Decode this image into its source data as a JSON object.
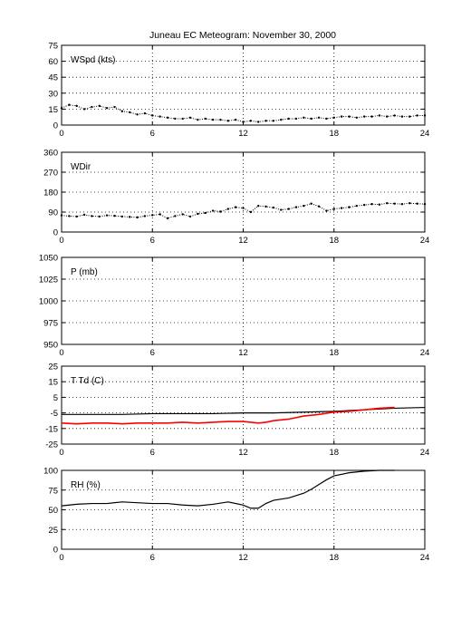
{
  "title": "Juneau EC Meteogram:  November 30, 2000",
  "colors": {
    "axis": "#000000",
    "line_black": "#000000",
    "line_red": "#ff0000",
    "grid": "#000000"
  },
  "chart_data": [
    {
      "type": "scatter",
      "label": "WSpd (kts)",
      "xlim": [
        0,
        24
      ],
      "ylim": [
        0,
        75
      ],
      "xticks": [
        0,
        6,
        12,
        18,
        24
      ],
      "yticks": [
        0,
        15,
        30,
        45,
        60,
        75
      ],
      "grid": true,
      "series": [
        {
          "color": "#000000",
          "x": [
            0,
            0.5,
            1,
            1.5,
            2,
            2.5,
            3,
            3.5,
            4,
            4.5,
            5,
            5.5,
            6,
            6.5,
            7,
            7.5,
            8,
            8.5,
            9,
            9.5,
            10,
            10.5,
            11,
            11.5,
            12,
            12.5,
            13,
            13.5,
            14,
            14.5,
            15,
            15.5,
            16,
            16.5,
            17,
            17.5,
            18,
            18.5,
            19,
            19.5,
            20,
            20.5,
            21,
            21.5,
            22,
            22.5,
            23,
            23.5,
            24
          ],
          "values": [
            16,
            19,
            18,
            15,
            17,
            18,
            16,
            17,
            13,
            12,
            10,
            11,
            9,
            8,
            7,
            6,
            6,
            7,
            5,
            6,
            5,
            5,
            4,
            5,
            3,
            4,
            3,
            4,
            4,
            5,
            6,
            6,
            7,
            6,
            7,
            6,
            7,
            8,
            8,
            7,
            8,
            8,
            9,
            8,
            9,
            8,
            8,
            9,
            9
          ]
        }
      ]
    },
    {
      "type": "scatter",
      "label": "WDir",
      "xlim": [
        0,
        24
      ],
      "ylim": [
        0,
        360
      ],
      "xticks": [
        0,
        6,
        12,
        18,
        24
      ],
      "yticks": [
        0,
        90,
        180,
        270,
        360
      ],
      "grid": true,
      "series": [
        {
          "color": "#000000",
          "x": [
            0,
            0.5,
            1,
            1.5,
            2,
            2.5,
            3,
            3.5,
            4,
            4.5,
            5,
            5.5,
            6,
            6.5,
            7,
            7.5,
            8,
            8.5,
            9,
            9.5,
            10,
            10.5,
            11,
            11.5,
            12,
            12.5,
            13,
            13.5,
            14,
            14.5,
            15,
            15.5,
            16,
            16.5,
            17,
            17.5,
            18,
            18.5,
            19,
            19.5,
            20,
            20.5,
            21,
            21.5,
            22,
            22.5,
            23,
            23.5,
            24
          ],
          "values": [
            75,
            72,
            70,
            78,
            72,
            70,
            75,
            73,
            70,
            68,
            66,
            72,
            76,
            80,
            62,
            72,
            80,
            70,
            82,
            86,
            96,
            92,
            104,
            112,
            108,
            90,
            118,
            115,
            110,
            100,
            104,
            112,
            118,
            128,
            116,
            96,
            104,
            108,
            112,
            118,
            122,
            126,
            124,
            130,
            128,
            126,
            130,
            128,
            126
          ]
        }
      ]
    },
    {
      "type": "line",
      "label": "P (mb)",
      "xlim": [
        0,
        24
      ],
      "ylim": [
        950,
        1050
      ],
      "xticks": [
        0,
        6,
        12,
        18,
        24
      ],
      "yticks": [
        950,
        975,
        1000,
        1025,
        1050
      ],
      "grid": true,
      "series": []
    },
    {
      "type": "line",
      "label": "T Td (C)",
      "xlim": [
        0,
        24
      ],
      "ylim": [
        -25,
        25
      ],
      "xticks": [
        0,
        6,
        12,
        18,
        24
      ],
      "yticks": [
        -25,
        -15,
        -5,
        5,
        15,
        25
      ],
      "grid": true,
      "series": [
        {
          "color": "#000000",
          "x": [
            0,
            2,
            4,
            6,
            8,
            10,
            12,
            14,
            16,
            18,
            20,
            22,
            24
          ],
          "values": [
            -6,
            -6,
            -6,
            -5.5,
            -5.5,
            -5.5,
            -5,
            -5,
            -4.5,
            -4,
            -3,
            -2,
            -1.5
          ]
        },
        {
          "color": "#ff0000",
          "x": [
            0,
            1,
            2,
            3,
            4,
            5,
            6,
            7,
            8,
            9,
            10,
            11,
            12,
            12.5,
            13,
            13.5,
            14,
            15,
            16,
            17,
            18,
            19,
            20,
            21,
            22,
            23,
            24
          ],
          "values": [
            -11.5,
            -12,
            -11.5,
            -11.5,
            -12,
            -11.5,
            -11.5,
            -11.5,
            -11,
            -11.5,
            -11,
            -10.5,
            -10.5,
            -11,
            -11.5,
            -11,
            -10,
            -9,
            -7,
            -6,
            -4.5,
            -4,
            -3,
            -2,
            -1.5,
            null,
            null
          ]
        }
      ]
    },
    {
      "type": "line",
      "label": "RH (%)",
      "xlim": [
        0,
        24
      ],
      "ylim": [
        0,
        100
      ],
      "xticks": [
        0,
        6,
        12,
        18,
        24
      ],
      "yticks": [
        0,
        25,
        50,
        75,
        100
      ],
      "grid": true,
      "series": [
        {
          "color": "#000000",
          "x": [
            0,
            1,
            2,
            3,
            4,
            5,
            6,
            7,
            8,
            9,
            10,
            11,
            12,
            12.5,
            13,
            13.5,
            14,
            15,
            16,
            16.5,
            17,
            17.5,
            18,
            19,
            20,
            21,
            22
          ],
          "values": [
            55,
            57,
            58,
            58,
            60,
            59,
            58,
            58,
            56,
            55,
            57,
            60,
            56,
            52,
            52,
            58,
            62,
            65,
            71,
            76,
            82,
            88,
            93,
            97,
            99,
            100,
            100
          ]
        }
      ]
    }
  ]
}
